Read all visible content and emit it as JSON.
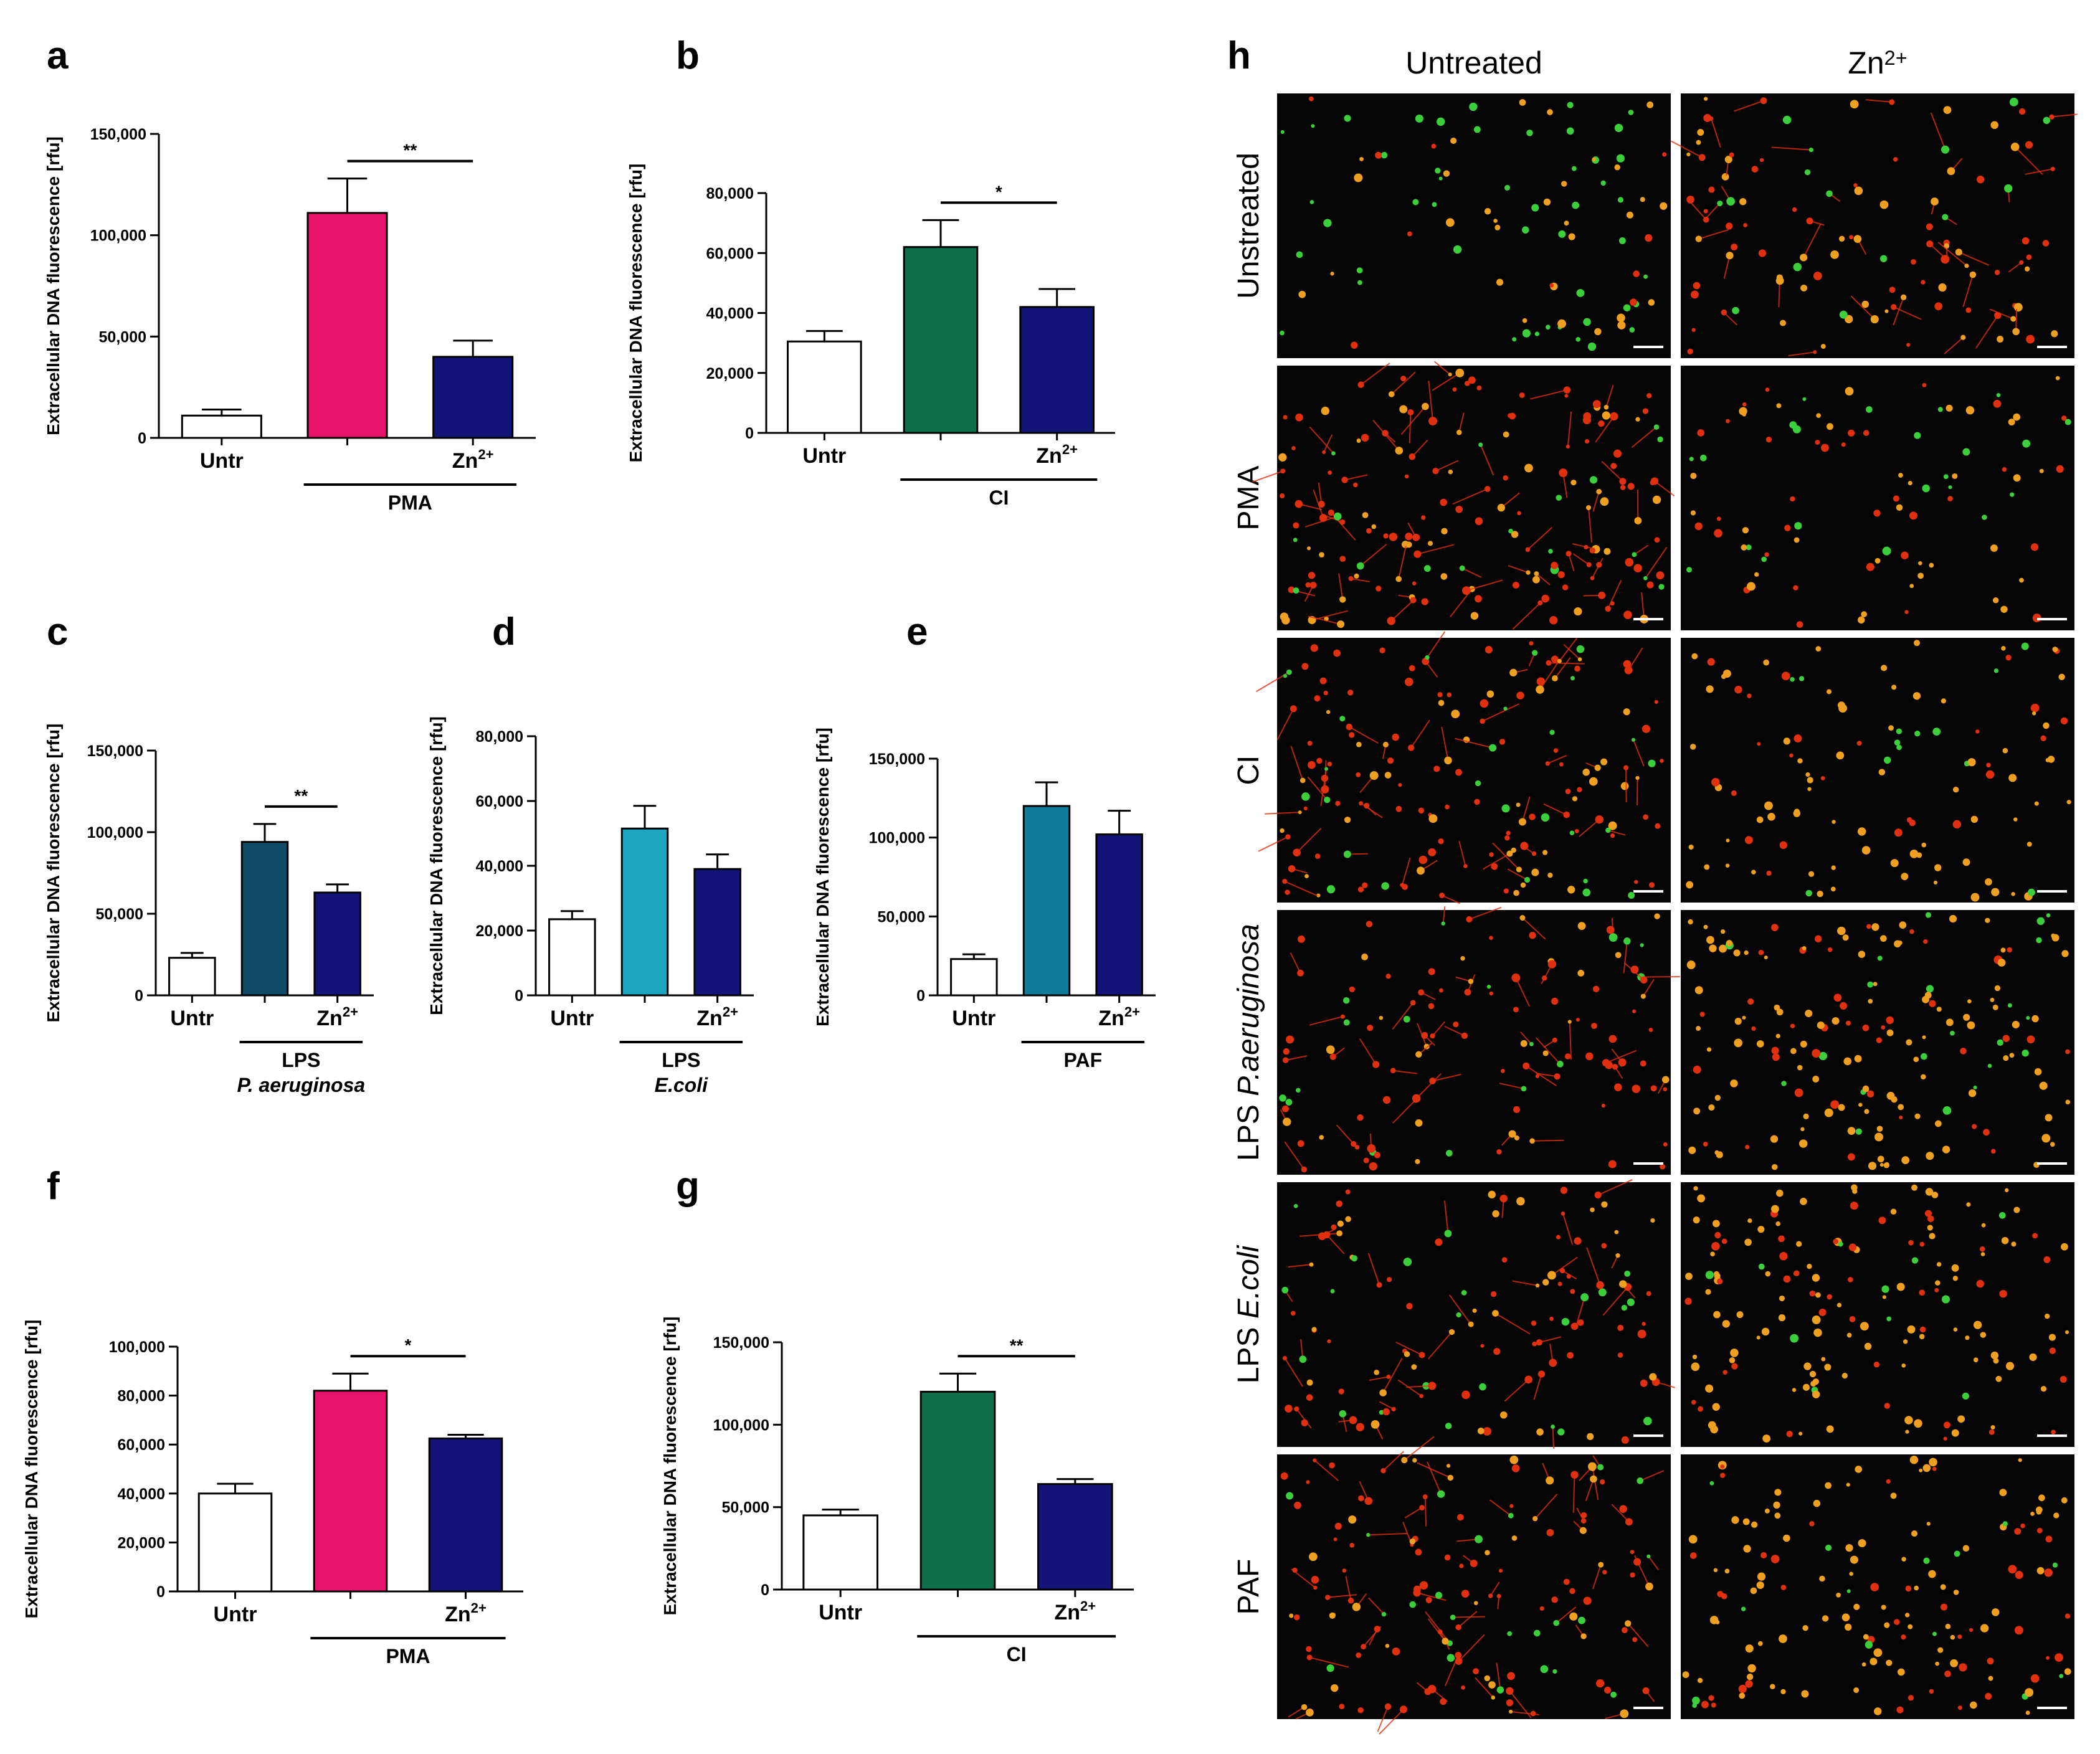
{
  "chart_data": [
    {
      "type": "bar",
      "letter": "a",
      "ylabel": "Extracellular DNA fluorescence [rfu]",
      "ylim": [
        0,
        150000
      ],
      "ticks": [
        0,
        50000,
        100000,
        150000
      ],
      "tick_labels": [
        "0",
        "50,000",
        "100,000",
        "150,000"
      ],
      "categories": [
        {
          "base": "Untr",
          "sup": ""
        },
        {
          "base": "",
          "sup": ""
        },
        {
          "base": "Zn",
          "sup": "2+"
        }
      ],
      "values": [
        11000,
        111000,
        40000
      ],
      "errors": [
        3000,
        17000,
        8000
      ],
      "colors": [
        "#ffffff",
        "#e8146c",
        "#141478"
      ],
      "group": {
        "label": "PMA",
        "label2": ""
      },
      "significance": {
        "label": "**",
        "from": 1,
        "to": 2
      }
    },
    {
      "type": "bar",
      "letter": "b",
      "ylabel": "Extracellular DNA fluorescence [rfu]",
      "ylim": [
        0,
        80000
      ],
      "ticks": [
        0,
        20000,
        40000,
        60000,
        80000
      ],
      "tick_labels": [
        "0",
        "20,000",
        "40,000",
        "60,000",
        "80,000"
      ],
      "categories": [
        {
          "base": "Untr",
          "sup": ""
        },
        {
          "base": "",
          "sup": ""
        },
        {
          "base": "Zn",
          "sup": "2+"
        }
      ],
      "values": [
        30500,
        62000,
        42000
      ],
      "errors": [
        3500,
        9000,
        6000
      ],
      "colors": [
        "#ffffff",
        "#0e6e4a",
        "#141478"
      ],
      "group": {
        "label": "CI",
        "label2": ""
      },
      "significance": {
        "label": "*",
        "from": 1,
        "to": 2
      }
    },
    {
      "type": "bar",
      "letter": "c",
      "ylabel": "Extracellular DNA fluorescence [rfu]",
      "ylim": [
        0,
        150000
      ],
      "ticks": [
        0,
        50000,
        100000,
        150000
      ],
      "tick_labels": [
        "0",
        "50,000",
        "100,000",
        "150,000"
      ],
      "categories": [
        {
          "base": "Untr",
          "sup": ""
        },
        {
          "base": "",
          "sup": ""
        },
        {
          "base": "Zn",
          "sup": "2+"
        }
      ],
      "values": [
        23000,
        94000,
        63000
      ],
      "errors": [
        3000,
        11000,
        5000
      ],
      "colors": [
        "#ffffff",
        "#0f4a66",
        "#141478"
      ],
      "group": {
        "label": "LPS",
        "label2": "P. aeruginosa"
      },
      "significance": {
        "label": "**",
        "from": 1,
        "to": 2
      }
    },
    {
      "type": "bar",
      "letter": "d",
      "ylabel": "Extracellular DNA fluorescence [rfu]",
      "ylim": [
        0,
        80000
      ],
      "ticks": [
        0,
        20000,
        40000,
        60000,
        80000
      ],
      "tick_labels": [
        "0",
        "20,000",
        "40,000",
        "60,000",
        "80,000"
      ],
      "categories": [
        {
          "base": "Untr",
          "sup": ""
        },
        {
          "base": "",
          "sup": ""
        },
        {
          "base": "Zn",
          "sup": "2+"
        }
      ],
      "values": [
        23500,
        51500,
        39000
      ],
      "errors": [
        2500,
        7000,
        4500
      ],
      "colors": [
        "#ffffff",
        "#1ea6c0",
        "#141478"
      ],
      "group": {
        "label": "LPS",
        "label2": "E.coli"
      },
      "significance": null
    },
    {
      "type": "bar",
      "letter": "e",
      "ylabel": "Extracellular DNA fluorescence [rfu]",
      "ylim": [
        0,
        150000
      ],
      "ticks": [
        0,
        50000,
        100000,
        150000
      ],
      "tick_labels": [
        "0",
        "50,000",
        "100,000",
        "150,000"
      ],
      "categories": [
        {
          "base": "Untr",
          "sup": ""
        },
        {
          "base": "",
          "sup": ""
        },
        {
          "base": "Zn",
          "sup": "2+"
        }
      ],
      "values": [
        23000,
        120000,
        102000
      ],
      "errors": [
        3000,
        15000,
        15000
      ],
      "colors": [
        "#ffffff",
        "#117c99",
        "#141478"
      ],
      "group": {
        "label": "PAF",
        "label2": ""
      },
      "significance": null
    },
    {
      "type": "bar",
      "letter": "f",
      "ylabel": "Extracellular DNA fluorescence [rfu]",
      "ylim": [
        0,
        100000
      ],
      "ticks": [
        0,
        20000,
        40000,
        60000,
        80000,
        100000
      ],
      "tick_labels": [
        "0",
        "20,000",
        "40,000",
        "60,000",
        "80,000",
        "100,000"
      ],
      "categories": [
        {
          "base": "Untr",
          "sup": ""
        },
        {
          "base": "",
          "sup": ""
        },
        {
          "base": "Zn",
          "sup": "2+"
        }
      ],
      "values": [
        40000,
        82000,
        62500
      ],
      "errors": [
        4000,
        7000,
        1500
      ],
      "colors": [
        "#ffffff",
        "#e8146c",
        "#141478"
      ],
      "group": {
        "label": "PMA",
        "label2": ""
      },
      "significance": {
        "label": "*",
        "from": 1,
        "to": 2
      }
    },
    {
      "type": "bar",
      "letter": "g",
      "ylabel": "Extracellular DNA fluorescence [rfu]",
      "ylim": [
        0,
        150000
      ],
      "ticks": [
        0,
        50000,
        100000,
        150000
      ],
      "tick_labels": [
        "0",
        "50,000",
        "100,000",
        "150,000"
      ],
      "categories": [
        {
          "base": "Untr",
          "sup": ""
        },
        {
          "base": "",
          "sup": ""
        },
        {
          "base": "Zn",
          "sup": "2+"
        }
      ],
      "values": [
        45000,
        120000,
        64000
      ],
      "errors": [
        3500,
        11000,
        3000
      ],
      "colors": [
        "#ffffff",
        "#0e6e4a",
        "#141478"
      ],
      "group": {
        "label": "CI",
        "label2": ""
      },
      "significance": {
        "label": "**",
        "from": 1,
        "to": 2
      }
    }
  ],
  "micrographs": {
    "letter": "h",
    "columns": [
      {
        "base": "Untreated",
        "sup": ""
      },
      {
        "base": "Zn",
        "sup": "2+"
      }
    ],
    "rows": [
      {
        "label": "Unstreated",
        "italic": ""
      },
      {
        "label": "PMA",
        "italic": ""
      },
      {
        "label": "CI",
        "italic": ""
      },
      {
        "label": "LPS ",
        "italic": "P.aeruginosa"
      },
      {
        "label": "LPS ",
        "italic": "E.coli"
      },
      {
        "label": "PAF",
        "italic": ""
      }
    ]
  },
  "colors": {
    "image_background": "#050505",
    "cell_green": "#3ccf3c",
    "cell_orange": "#f0a020",
    "cell_red": "#e03010",
    "scale_bar": "#ffffff"
  }
}
